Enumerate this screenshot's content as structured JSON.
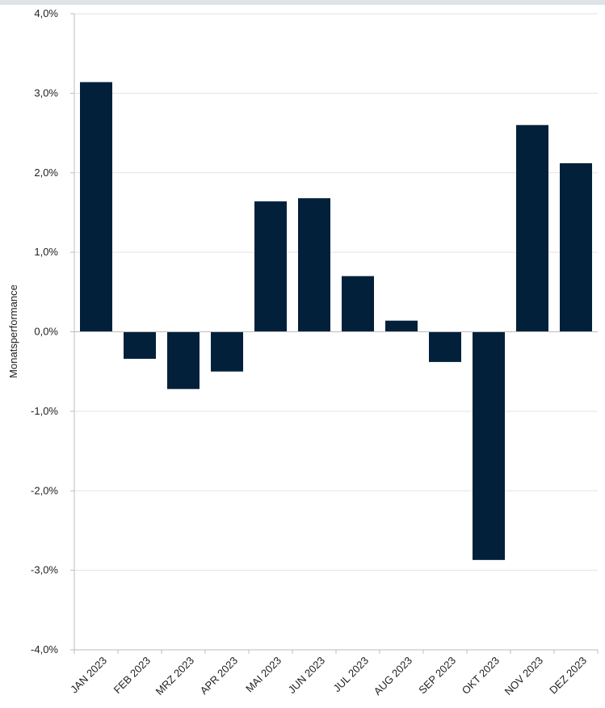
{
  "chart_data": {
    "type": "bar",
    "ylabel": "Monatsperformance",
    "categories": [
      "JAN 2023",
      "FEB 2023",
      "MRZ 2023",
      "APR 2023",
      "MAI 2023",
      "JUN 2023",
      "JUL 2023",
      "AUG 2023",
      "SEP 2023",
      "OKT 2023",
      "NOV 2023",
      "DEZ 2023"
    ],
    "values": [
      3.14,
      -0.34,
      -0.72,
      -0.5,
      1.64,
      1.68,
      0.7,
      0.14,
      -0.38,
      -2.87,
      2.6,
      2.12
    ],
    "ylim": [
      -4,
      4
    ],
    "yticks": [
      4,
      3,
      2,
      1,
      0,
      -1,
      -2,
      -3,
      -4
    ],
    "ytick_labels": [
      "4,0%",
      "3,0%",
      "2,0%",
      "1,0%",
      "0,0%",
      "-1,0%",
      "-2,0%",
      "-3,0%",
      "-4,0%"
    ],
    "grid": true,
    "colors": {
      "bar": "#03203a",
      "grid": "#e3e3e3",
      "axis": "#bdbdbd"
    }
  }
}
